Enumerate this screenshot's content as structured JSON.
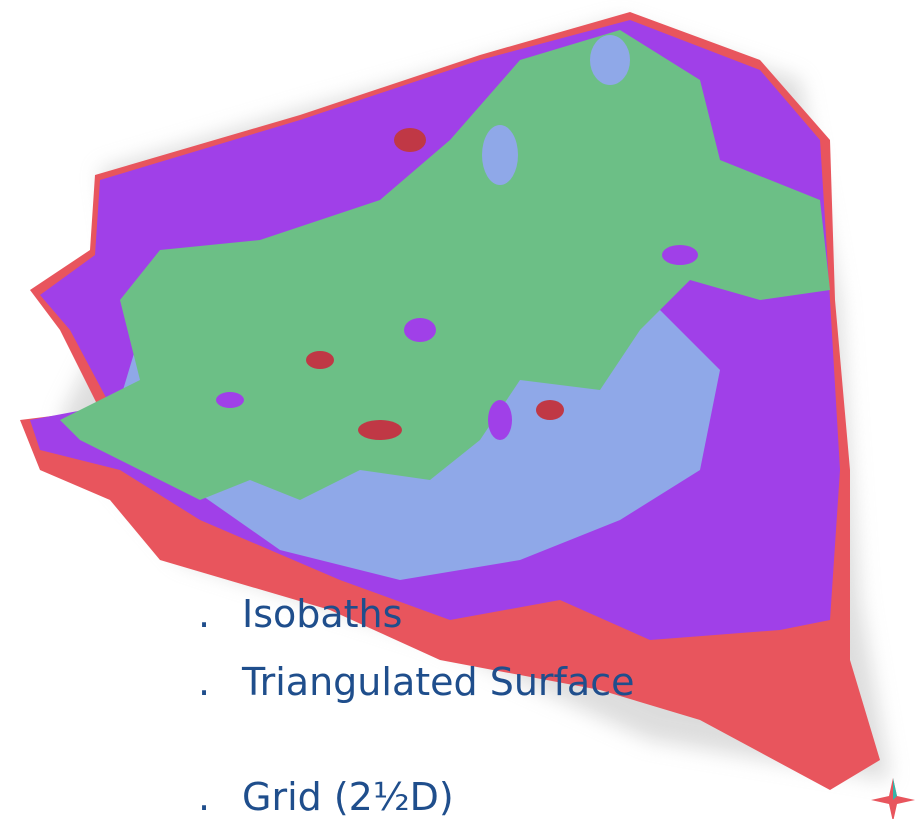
{
  "list": {
    "items": [
      "Isobaths",
      "Triangulated Surface",
      "Grid (2½D)"
    ]
  }
}
